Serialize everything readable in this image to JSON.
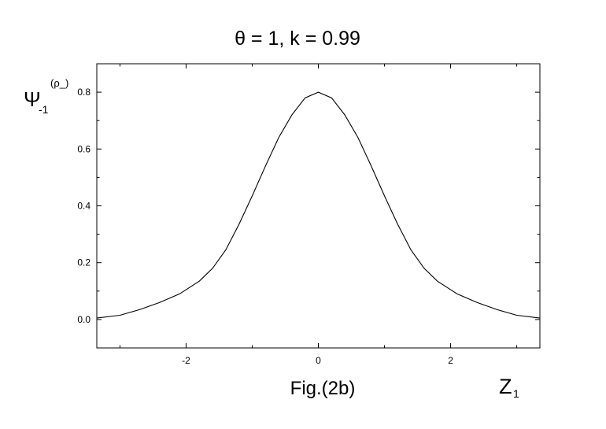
{
  "chart_data": {
    "type": "line",
    "title": "θ = 1, k = 0.99",
    "ylabel": {
      "main": "Ψ",
      "sub": "-1",
      "sup": "(ρ_)"
    },
    "xlabel": {
      "main": "Z",
      "sub": "1"
    },
    "caption": "Fig.(2b)",
    "xlim": [
      -3.35,
      3.35
    ],
    "ylim": [
      -0.1,
      0.9
    ],
    "x_ticks_major": [
      -2,
      0,
      2
    ],
    "x_tick_labels": [
      "-2",
      "0",
      "2"
    ],
    "x_ticks_minor": [
      -3,
      -1,
      1,
      3
    ],
    "y_ticks_major": [
      0.0,
      0.2,
      0.4,
      0.6,
      0.8
    ],
    "y_tick_labels": [
      "0.0",
      "0.2",
      "0.4",
      "0.6",
      "0.8"
    ],
    "y_ticks_minor": [
      -0.1,
      0.1,
      0.3,
      0.5,
      0.7,
      0.9
    ],
    "grid": false,
    "series": [
      {
        "x": [
          -3.35,
          -3.0,
          -2.7,
          -2.4,
          -2.1,
          -1.8,
          -1.6,
          -1.4,
          -1.2,
          -1.0,
          -0.8,
          -0.6,
          -0.4,
          -0.2,
          0.0,
          0.2,
          0.4,
          0.6,
          0.8,
          1.0,
          1.2,
          1.4,
          1.6,
          1.8,
          2.1,
          2.4,
          2.7,
          3.0,
          3.35
        ],
        "y": [
          0.005,
          0.015,
          0.035,
          0.06,
          0.09,
          0.135,
          0.18,
          0.245,
          0.335,
          0.435,
          0.54,
          0.64,
          0.72,
          0.78,
          0.8,
          0.78,
          0.72,
          0.64,
          0.54,
          0.435,
          0.335,
          0.245,
          0.18,
          0.135,
          0.09,
          0.06,
          0.035,
          0.015,
          0.005
        ]
      }
    ]
  }
}
